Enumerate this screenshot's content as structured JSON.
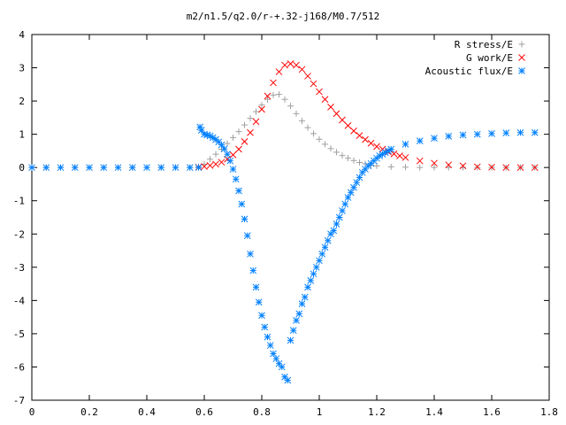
{
  "chart_data": {
    "type": "scatter",
    "title": "m2/n1.5/q2.0/r-+.32-j168/M0.7/512",
    "xlabel": "",
    "ylabel": "",
    "xlim": [
      0,
      1.8
    ],
    "ylim": [
      -7,
      4
    ],
    "x_ticks": [
      "0",
      "0.2",
      "0.4",
      "0.6",
      "0.8",
      "1",
      "1.2",
      "1.4",
      "1.6",
      "1.8"
    ],
    "y_ticks": [
      "4",
      "3",
      "2",
      "1",
      "0",
      "-1",
      "-2",
      "-3",
      "-4",
      "-5",
      "-6",
      "-7"
    ],
    "legend_position": "top-right",
    "grid": false,
    "series": [
      {
        "name": "R stress/E",
        "marker": "+",
        "color": "#a0a0a0",
        "x": [
          0.0,
          0.05,
          0.1,
          0.15,
          0.2,
          0.25,
          0.3,
          0.35,
          0.4,
          0.45,
          0.5,
          0.55,
          0.58,
          0.6,
          0.62,
          0.64,
          0.66,
          0.68,
          0.7,
          0.72,
          0.74,
          0.76,
          0.78,
          0.8,
          0.82,
          0.84,
          0.86,
          0.88,
          0.9,
          0.92,
          0.94,
          0.96,
          0.98,
          1.0,
          1.02,
          1.04,
          1.06,
          1.08,
          1.1,
          1.12,
          1.14,
          1.16,
          1.18,
          1.2,
          1.25,
          1.3,
          1.35,
          1.4,
          1.45,
          1.5,
          1.55,
          1.6,
          1.65,
          1.7,
          1.75
        ],
        "y": [
          0,
          0,
          0,
          0,
          0,
          0,
          0,
          0,
          0,
          0,
          0,
          0,
          0.02,
          0.1,
          0.25,
          0.4,
          0.55,
          0.72,
          0.9,
          1.08,
          1.28,
          1.48,
          1.68,
          1.88,
          2.05,
          2.18,
          2.2,
          2.05,
          1.85,
          1.62,
          1.4,
          1.2,
          1.02,
          0.85,
          0.7,
          0.57,
          0.46,
          0.36,
          0.28,
          0.21,
          0.15,
          0.11,
          0.07,
          0.05,
          0.02,
          0.01,
          0.0,
          0.0,
          0.0,
          0.0,
          0.0,
          0.0,
          0.0,
          0.0,
          0.0
        ]
      },
      {
        "name": "G work/E",
        "marker": "x",
        "color": "#ff0000",
        "x": [
          0.58,
          0.6,
          0.62,
          0.64,
          0.66,
          0.68,
          0.7,
          0.72,
          0.74,
          0.76,
          0.78,
          0.8,
          0.82,
          0.84,
          0.86,
          0.88,
          0.9,
          0.92,
          0.94,
          0.96,
          0.98,
          1.0,
          1.02,
          1.04,
          1.06,
          1.08,
          1.1,
          1.12,
          1.14,
          1.16,
          1.18,
          1.2,
          1.22,
          1.24,
          1.26,
          1.28,
          1.3,
          1.35,
          1.4,
          1.45,
          1.5,
          1.55,
          1.6,
          1.65,
          1.7,
          1.75
        ],
        "y": [
          0.01,
          0.03,
          0.06,
          0.1,
          0.16,
          0.25,
          0.38,
          0.55,
          0.78,
          1.05,
          1.38,
          1.75,
          2.15,
          2.55,
          2.88,
          3.08,
          3.12,
          3.08,
          2.95,
          2.75,
          2.52,
          2.28,
          2.05,
          1.82,
          1.62,
          1.43,
          1.26,
          1.1,
          0.96,
          0.84,
          0.73,
          0.63,
          0.55,
          0.47,
          0.41,
          0.35,
          0.3,
          0.2,
          0.13,
          0.08,
          0.05,
          0.02,
          0.01,
          0.0,
          0.0,
          0.0
        ]
      },
      {
        "name": "Acoustic flux/E",
        "marker": "*",
        "color": "#0080ff",
        "x": [
          0.0,
          0.05,
          0.1,
          0.15,
          0.2,
          0.25,
          0.3,
          0.35,
          0.4,
          0.45,
          0.5,
          0.55,
          0.58,
          0.585,
          0.59,
          0.6,
          0.61,
          0.62,
          0.63,
          0.64,
          0.65,
          0.66,
          0.67,
          0.68,
          0.69,
          0.7,
          0.71,
          0.72,
          0.73,
          0.74,
          0.75,
          0.76,
          0.77,
          0.78,
          0.79,
          0.8,
          0.81,
          0.82,
          0.83,
          0.84,
          0.85,
          0.86,
          0.87,
          0.88,
          0.89,
          0.9,
          0.91,
          0.92,
          0.93,
          0.94,
          0.95,
          0.96,
          0.97,
          0.98,
          0.99,
          1.0,
          1.01,
          1.02,
          1.03,
          1.04,
          1.05,
          1.06,
          1.07,
          1.08,
          1.09,
          1.1,
          1.11,
          1.12,
          1.13,
          1.14,
          1.15,
          1.16,
          1.17,
          1.18,
          1.19,
          1.2,
          1.21,
          1.22,
          1.23,
          1.24,
          1.25,
          1.3,
          1.35,
          1.4,
          1.45,
          1.5,
          1.55,
          1.6,
          1.65,
          1.7,
          1.75
        ],
        "y": [
          0,
          0,
          0,
          0,
          0,
          0,
          0,
          0,
          0,
          0,
          0,
          0,
          0,
          1.22,
          1.12,
          1.0,
          0.98,
          0.95,
          0.9,
          0.84,
          0.77,
          0.68,
          0.56,
          0.4,
          0.2,
          -0.05,
          -0.35,
          -0.7,
          -1.1,
          -1.55,
          -2.05,
          -2.6,
          -3.1,
          -3.6,
          -4.05,
          -4.45,
          -4.8,
          -5.1,
          -5.35,
          -5.6,
          -5.75,
          -5.9,
          -6.0,
          -6.3,
          -6.4,
          -5.2,
          -4.9,
          -4.6,
          -4.4,
          -4.1,
          -3.9,
          -3.6,
          -3.4,
          -3.2,
          -3.0,
          -2.8,
          -2.6,
          -2.4,
          -2.2,
          -2.0,
          -1.9,
          -1.7,
          -1.5,
          -1.3,
          -1.1,
          -0.9,
          -0.75,
          -0.6,
          -0.45,
          -0.3,
          -0.15,
          -0.05,
          0.05,
          0.12,
          0.2,
          0.28,
          0.35,
          0.4,
          0.45,
          0.5,
          0.55,
          0.7,
          0.8,
          0.88,
          0.94,
          0.98,
          1.0,
          1.02,
          1.04,
          1.05,
          1.05
        ]
      }
    ]
  }
}
